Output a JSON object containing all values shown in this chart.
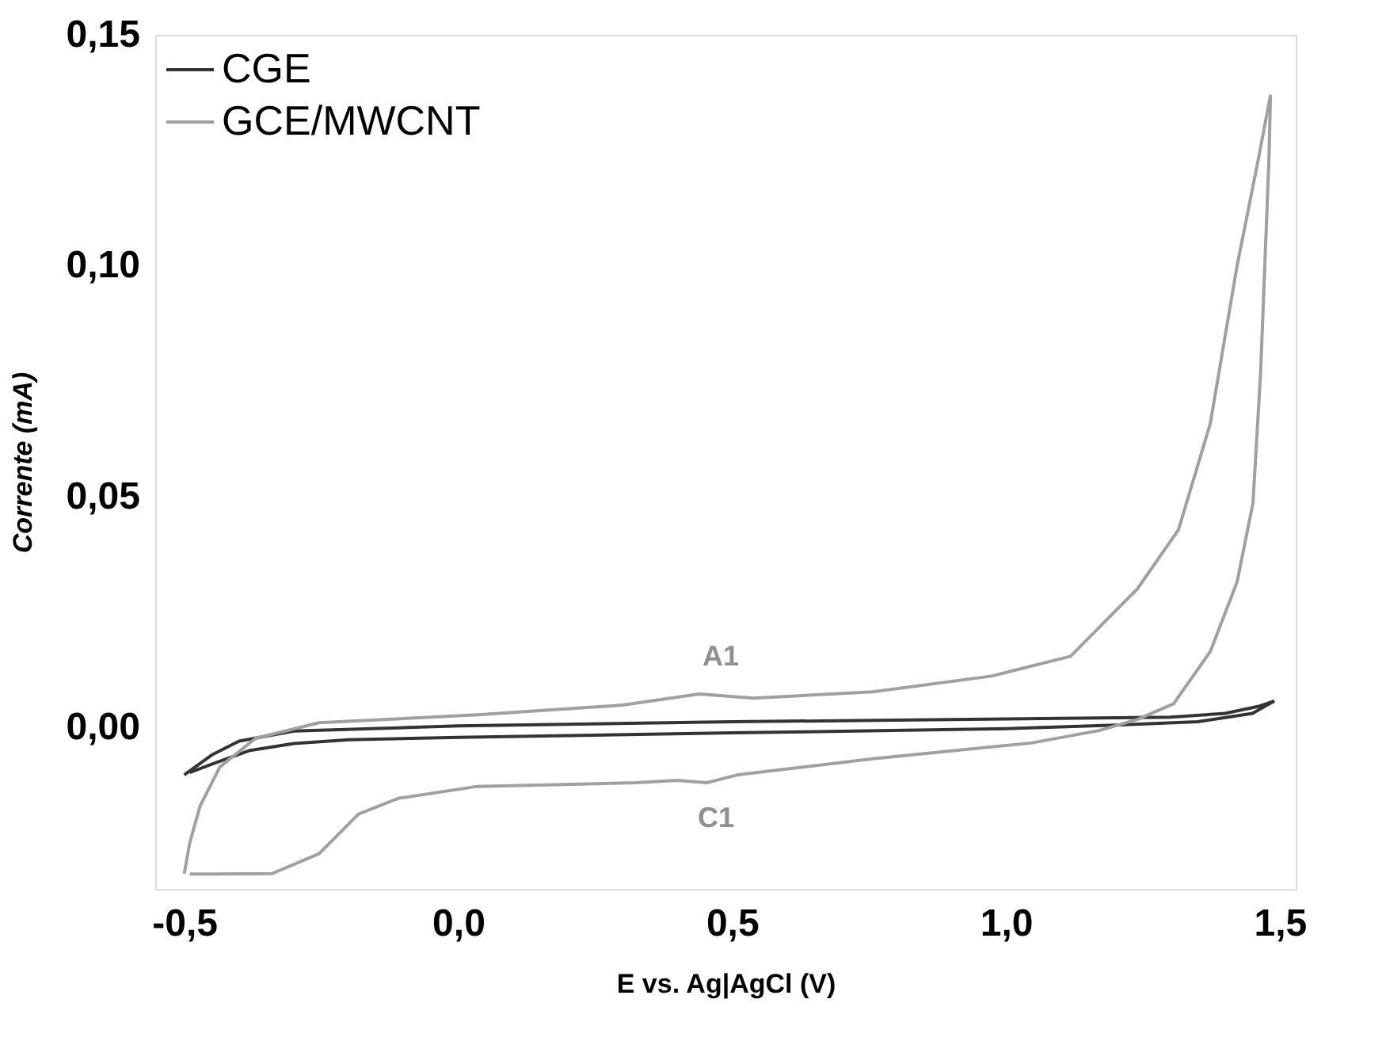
{
  "chart_data": {
    "type": "line",
    "xlabel": "E vs. Ag|AgCl (V)",
    "ylabel": "Corrente (mA)",
    "xlim": [
      -0.553,
      1.529
    ],
    "ylim": [
      -0.035,
      0.15
    ],
    "xticks": [
      {
        "value": -0.5,
        "label": "-0,5"
      },
      {
        "value": 0,
        "label": "0,0"
      },
      {
        "value": 0.5,
        "label": "0,5"
      },
      {
        "value": 1.0,
        "label": "1,0"
      },
      {
        "value": 1.5,
        "label": "1,5"
      }
    ],
    "yticks": [
      {
        "value": 0,
        "label": "0,00"
      },
      {
        "value": 0.05,
        "label": "0,05"
      },
      {
        "value": 0.1,
        "label": "0,10"
      },
      {
        "value": 0.15,
        "label": "0,15"
      }
    ],
    "grid": false,
    "legend": "top left",
    "marker": "none",
    "line_style": "solid",
    "annotations": [
      "A1",
      "C1"
    ],
    "series": [
      {
        "name": "CGE",
        "color": "#333333",
        "x": [
          -0.5,
          -0.45,
          -0.4,
          -0.3,
          0.0,
          0.5,
          1.0,
          1.3,
          1.4,
          1.46,
          1.49
        ],
        "values": [
          -0.0103,
          -0.006,
          -0.003,
          -0.0008,
          0.0003,
          0.0012,
          0.0018,
          0.0022,
          0.003,
          0.0045,
          0.0057
        ]
      },
      {
        "color": "#333333",
        "x": [
          1.49,
          1.45,
          1.35,
          1.2,
          1.0,
          0.5,
          0.0,
          -0.2,
          -0.3,
          -0.38,
          -0.45,
          -0.49
        ],
        "values": [
          0.0057,
          0.003,
          0.0012,
          0.0005,
          -0.0003,
          -0.0012,
          -0.0022,
          -0.0027,
          -0.0035,
          -0.005,
          -0.008,
          -0.0098
        ]
      },
      {
        "name": "GCE/MWCNT",
        "color": "#a0a0a0",
        "x": [
          -0.5,
          -0.49,
          -0.471,
          -0.435,
          -0.37,
          -0.254,
          0.035,
          0.3,
          0.44,
          0.54,
          0.757,
          0.974,
          1.118,
          1.24,
          1.315,
          1.373,
          1.422,
          1.46,
          1.483
        ],
        "values": [
          -0.0317,
          -0.025,
          -0.017,
          -0.0086,
          -0.0024,
          0.001,
          0.0027,
          0.0048,
          0.0072,
          0.0063,
          0.0077,
          0.0111,
          0.0154,
          0.03,
          0.0428,
          0.0658,
          0.1,
          0.1226,
          0.137
        ]
      },
      {
        "color": "#a0a0a0",
        "x": [
          1.483,
          1.48,
          1.465,
          1.451,
          1.422,
          1.373,
          1.306,
          1.24,
          1.17,
          1.046,
          0.757,
          0.51,
          0.454,
          0.4,
          0.324,
          0.035,
          -0.11,
          -0.182,
          -0.254,
          -0.34,
          -0.45,
          -0.49
        ],
        "values": [
          0.137,
          0.1226,
          0.077,
          0.0486,
          0.0315,
          0.0164,
          0.0051,
          0.0017,
          -0.0007,
          -0.0034,
          -0.0068,
          -0.0103,
          -0.012,
          -0.0115,
          -0.012,
          -0.0128,
          -0.0154,
          -0.0188,
          -0.0274,
          -0.0317,
          -0.0318,
          -0.0318
        ]
      }
    ]
  }
}
